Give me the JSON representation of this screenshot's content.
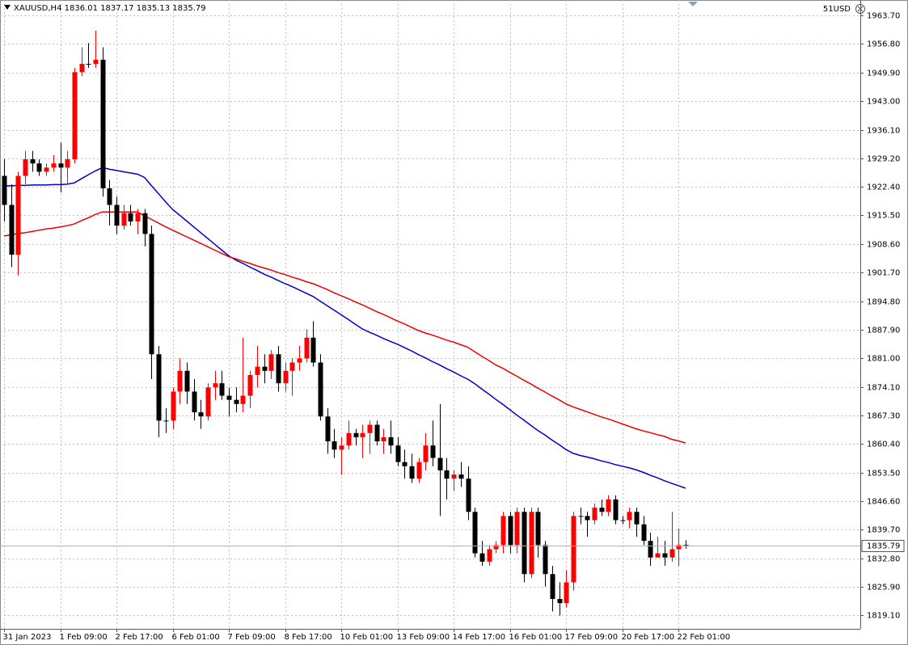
{
  "chart_data": {
    "type": "candlestick",
    "symbol": "XAUUSD,H4",
    "account_label": "51USD",
    "up_color": "#ff0000",
    "down_color": "#000000",
    "grid": true,
    "ylim": [
      1815.8,
      1967.4
    ],
    "yticks": [
      {
        "value": 1963.7,
        "label": "1963.70"
      },
      {
        "value": 1956.8,
        "label": "1956.80"
      },
      {
        "value": 1949.9,
        "label": "1949.90"
      },
      {
        "value": 1943.0,
        "label": "1943.00"
      },
      {
        "value": 1936.1,
        "label": "1936.10"
      },
      {
        "value": 1929.2,
        "label": "1929.20"
      },
      {
        "value": 1922.4,
        "label": "1922.40"
      },
      {
        "value": 1915.5,
        "label": "1915.50"
      },
      {
        "value": 1908.6,
        "label": "1908.60"
      },
      {
        "value": 1901.7,
        "label": "1901.70"
      },
      {
        "value": 1894.8,
        "label": "1894.80"
      },
      {
        "value": 1887.9,
        "label": "1887.90"
      },
      {
        "value": 1881.0,
        "label": "1881.00"
      },
      {
        "value": 1874.1,
        "label": "1874.10"
      },
      {
        "value": 1867.3,
        "label": "1867.30"
      },
      {
        "value": 1860.4,
        "label": "1860.40"
      },
      {
        "value": 1853.5,
        "label": "1853.50"
      },
      {
        "value": 1846.6,
        "label": "1846.60"
      },
      {
        "value": 1839.7,
        "label": "1839.70"
      },
      {
        "value": 1832.8,
        "label": "1832.80"
      },
      {
        "value": 1825.9,
        "label": "1825.90"
      },
      {
        "value": 1819.1,
        "label": "1819.10"
      }
    ],
    "categories": [
      "31 Jan 2023",
      null,
      null,
      null,
      null,
      null,
      null,
      null,
      "1 Feb 09:00",
      null,
      null,
      null,
      null,
      null,
      null,
      null,
      "2 Feb 17:00",
      null,
      null,
      null,
      null,
      null,
      null,
      null,
      "6 Feb 01:00",
      null,
      null,
      null,
      null,
      null,
      null,
      null,
      "7 Feb 09:00",
      null,
      null,
      null,
      null,
      null,
      null,
      null,
      "8 Feb 17:00",
      null,
      null,
      null,
      null,
      null,
      null,
      null,
      "10 Feb 01:00",
      null,
      null,
      null,
      null,
      null,
      null,
      null,
      "13 Feb 09:00",
      null,
      null,
      null,
      null,
      null,
      null,
      null,
      "14 Feb 17:00",
      null,
      null,
      null,
      null,
      null,
      null,
      null,
      "16 Feb 01:00",
      null,
      null,
      null,
      null,
      null,
      null,
      null,
      "17 Feb 09:00",
      null,
      null,
      null,
      null,
      null,
      null,
      null,
      "20 Feb 17:00",
      null,
      null,
      null,
      null,
      null,
      null,
      null,
      "22 Feb 01:00",
      null
    ],
    "open": [
      1925,
      1918,
      1906,
      1925,
      1929,
      1928,
      1926,
      1927,
      1928,
      1927,
      1929,
      1950,
      1952,
      1952,
      1953,
      1922,
      1918,
      1913,
      1916,
      1914,
      1916,
      1911,
      1882,
      1866,
      1866,
      1873,
      1878,
      1873,
      1868,
      1867,
      1874,
      1875,
      1872,
      1871,
      1870,
      1872,
      1877,
      1879,
      1878,
      1882,
      1875,
      1878,
      1880,
      1881,
      1886,
      1880,
      1867,
      1861,
      1859,
      1860,
      1863,
      1862,
      1863,
      1865,
      1861,
      1862,
      1860,
      1856,
      1855,
      1852,
      1856,
      1860,
      1857,
      1854,
      1852,
      1853,
      1852,
      1844,
      1834,
      1832,
      1835,
      1836,
      1843,
      1836,
      1844,
      1829,
      1844,
      1836,
      1829,
      1823,
      1822,
      1827,
      1843,
      1843,
      1842,
      1845,
      1844,
      1847,
      1842,
      1842,
      1844,
      1841,
      1837,
      1833,
      1834,
      1833,
      1835,
      1836.01
    ],
    "high": [
      1929,
      1923,
      1926,
      1931,
      1931,
      1929,
      1928,
      1930,
      1933,
      1931,
      1951,
      1956,
      1957,
      1960,
      1956,
      1924,
      1920,
      1918,
      1918,
      1917,
      1917,
      1913,
      1884,
      1869,
      1874,
      1881,
      1880,
      1876,
      1871,
      1875,
      1878,
      1878,
      1874,
      1874,
      1886,
      1878,
      1884,
      1882,
      1883,
      1884,
      1880,
      1881,
      1884,
      1888,
      1890,
      1882,
      1869,
      1864,
      1862,
      1866,
      1864,
      1865,
      1866,
      1866,
      1864,
      1866,
      1862,
      1859,
      1858,
      1857,
      1863,
      1866,
      1870,
      1857,
      1854,
      1856,
      1855,
      1845,
      1837,
      1836,
      1837,
      1844,
      1844,
      1845,
      1845,
      1845,
      1845,
      1837,
      1831,
      1827,
      1830,
      1844,
      1845,
      1844,
      1846,
      1847,
      1848,
      1848,
      1843,
      1845,
      1845,
      1843,
      1839,
      1838,
      1837,
      1844,
      1840,
      1837.17
    ],
    "low": [
      1914,
      1903,
      1901,
      1923,
      1926,
      1925,
      1925,
      1926,
      1921,
      1923,
      1928,
      1949,
      1951,
      1951,
      1920,
      1913,
      1911,
      1912,
      1913,
      1911,
      1908,
      1876,
      1862,
      1863,
      1864,
      1870,
      1870,
      1866,
      1864,
      1866,
      1871,
      1871,
      1867,
      1868,
      1868,
      1869,
      1874,
      1875,
      1876,
      1873,
      1873,
      1872,
      1878,
      1880,
      1879,
      1866,
      1858,
      1857,
      1853,
      1859,
      1860,
      1857,
      1858,
      1860,
      1858,
      1858,
      1855,
      1852,
      1851,
      1851,
      1854,
      1855,
      1843,
      1847,
      1849,
      1850,
      1842,
      1833,
      1831,
      1831,
      1834,
      1834,
      1834,
      1834,
      1827,
      1828,
      1833,
      1826,
      1820,
      1819,
      1821,
      1825,
      1841,
      1838,
      1841,
      1843,
      1843,
      1841,
      1841,
      1840,
      1838,
      1836,
      1831,
      1833,
      1831,
      1832,
      1831,
      1835.13
    ],
    "close": [
      1918,
      1906,
      1925,
      1929,
      1928,
      1926,
      1927,
      1928,
      1927,
      1929,
      1950,
      1952,
      1952,
      1953,
      1922,
      1918,
      1913,
      1916,
      1914,
      1916,
      1911,
      1882,
      1866,
      1866,
      1873,
      1878,
      1873,
      1868,
      1867,
      1874,
      1875,
      1872,
      1871,
      1870,
      1872,
      1877,
      1879,
      1878,
      1882,
      1875,
      1878,
      1880,
      1881,
      1886,
      1880,
      1867,
      1861,
      1859,
      1860,
      1863,
      1862,
      1863,
      1865,
      1861,
      1862,
      1860,
      1856,
      1855,
      1852,
      1856,
      1860,
      1857,
      1854,
      1852,
      1853,
      1852,
      1844,
      1834,
      1832,
      1835,
      1836,
      1843,
      1836,
      1844,
      1829,
      1844,
      1836,
      1829,
      1823,
      1822,
      1827,
      1843,
      1843,
      1842,
      1845,
      1844,
      1847,
      1842,
      1842,
      1844,
      1841,
      1837,
      1833,
      1834,
      1833,
      1835,
      1836,
      1835.79
    ],
    "lines": [
      {
        "color": "#0000cc",
        "values": [
          1922.6,
          1922.6,
          1922.7,
          1922.7,
          1922.8,
          1922.8,
          1922.8,
          1922.9,
          1922.9,
          1923.0,
          1923.3,
          1924.3,
          1925.3,
          1926.2,
          1927.0,
          1926.6,
          1926.3,
          1926.0,
          1925.7,
          1925.4,
          1924.6,
          1922.6,
          1920.7,
          1918.7,
          1916.9,
          1915.5,
          1914.1,
          1912.7,
          1911.3,
          1909.9,
          1908.5,
          1907.1,
          1905.7,
          1904.7,
          1903.9,
          1903.0,
          1902.2,
          1901.3,
          1900.6,
          1899.8,
          1899.0,
          1898.3,
          1897.5,
          1896.7,
          1895.9,
          1894.8,
          1893.7,
          1892.6,
          1891.5,
          1890.4,
          1889.2,
          1888.1,
          1887.3,
          1886.6,
          1885.8,
          1885.1,
          1884.4,
          1883.6,
          1882.8,
          1881.9,
          1881.1,
          1880.2,
          1879.4,
          1878.5,
          1877.7,
          1876.8,
          1876.0,
          1874.9,
          1873.6,
          1872.4,
          1871.1,
          1869.9,
          1868.6,
          1867.3,
          1866.1,
          1864.8,
          1863.6,
          1862.5,
          1861.3,
          1860.2,
          1859.0,
          1858.1,
          1857.6,
          1857.2,
          1856.8,
          1856.3,
          1855.9,
          1855.4,
          1855.0,
          1854.6,
          1854.1,
          1853.5,
          1852.8,
          1852.2,
          1851.5,
          1850.9,
          1850.3,
          1849.7
        ]
      },
      {
        "color": "#ee0000",
        "values": [
          1910.5,
          1910.8,
          1911.1,
          1911.3,
          1911.6,
          1911.9,
          1912.2,
          1912.4,
          1912.7,
          1913.0,
          1913.4,
          1914.2,
          1914.9,
          1915.7,
          1916.3,
          1916.3,
          1916.3,
          1916.3,
          1916.3,
          1916.3,
          1915.4,
          1914.5,
          1913.6,
          1912.7,
          1911.9,
          1911.1,
          1910.3,
          1909.5,
          1908.7,
          1907.9,
          1907.1,
          1906.3,
          1905.5,
          1905.0,
          1904.4,
          1903.9,
          1903.3,
          1902.8,
          1902.3,
          1901.7,
          1901.2,
          1900.6,
          1900.1,
          1899.5,
          1899.0,
          1898.3,
          1897.6,
          1896.8,
          1896.1,
          1895.4,
          1894.6,
          1893.9,
          1893.1,
          1892.3,
          1891.6,
          1890.8,
          1890.0,
          1889.3,
          1888.5,
          1887.7,
          1887.1,
          1886.6,
          1886.0,
          1885.4,
          1884.9,
          1884.3,
          1883.7,
          1882.6,
          1881.5,
          1880.5,
          1879.4,
          1878.6,
          1877.6,
          1876.7,
          1875.7,
          1874.8,
          1873.8,
          1872.9,
          1871.9,
          1871.0,
          1870.0,
          1869.3,
          1868.7,
          1868.1,
          1867.5,
          1866.9,
          1866.4,
          1865.8,
          1865.2,
          1864.6,
          1864.0,
          1863.5,
          1863.1,
          1862.6,
          1862.2,
          1861.5,
          1861.1,
          1860.6
        ]
      }
    ]
  }
}
